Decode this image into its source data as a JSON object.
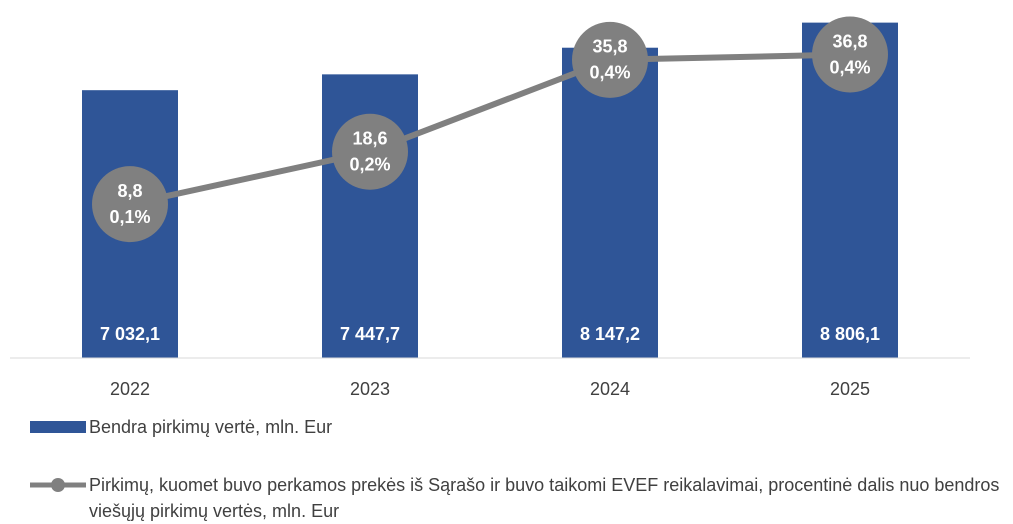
{
  "chart_data": {
    "type": "bar",
    "categories": [
      "2022",
      "2023",
      "2024",
      "2025"
    ],
    "ylim": [
      0,
      9400
    ],
    "y2lim": [
      -20,
      47
    ],
    "series": [
      {
        "name": "Bendra pirkimų vertė, mln. Eur",
        "type": "bar",
        "color": "#2f5597",
        "values": [
          7032.1,
          7447.7,
          8147.2,
          8806.1
        ],
        "value_labels": [
          "7 032,1",
          "7 447,7",
          "8 147,2",
          "8 806,1"
        ]
      },
      {
        "name": "Pirkimų, kuomet buvo perkamos prekės iš Sąrašo ir buvo taikomi EVEF reikalavimai, procentinė dalis nuo bendros viešųjų pirkimų vertės, mln. Eur",
        "type": "line",
        "axis": "y2",
        "color": "#808080",
        "values": [
          8.8,
          18.6,
          35.8,
          36.8
        ],
        "value_labels": [
          "8,8",
          "18,6",
          "35,8",
          "36,8"
        ],
        "shares": [
          0.1,
          0.2,
          0.4,
          0.4
        ],
        "share_labels": [
          "0,1%",
          "0,2%",
          "0,4%",
          "0,4%"
        ]
      }
    ]
  }
}
